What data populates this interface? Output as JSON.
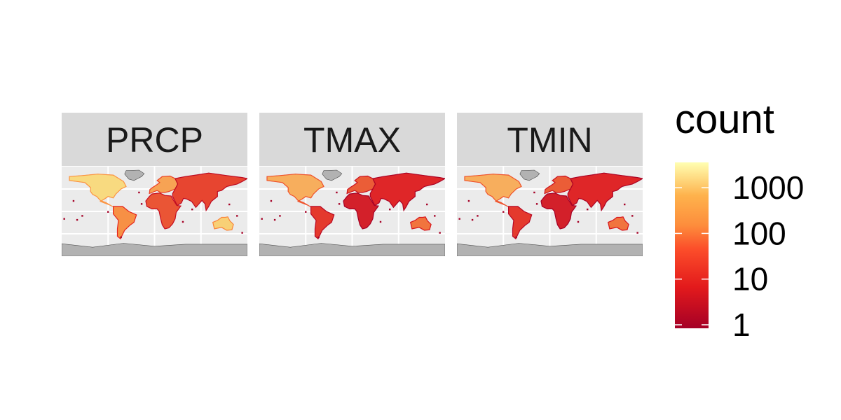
{
  "chart_data": {
    "type": "heatmap",
    "description_kind": "faceted world map of binned station counts",
    "facets": [
      "PRCP",
      "TMAX",
      "TMIN"
    ],
    "xlim": [
      -180,
      180
    ],
    "ylim": [
      -90,
      90
    ],
    "grid": true,
    "legend": {
      "title": "count",
      "scale": "log10",
      "range": [
        1,
        3000
      ],
      "breaks": [
        1,
        10,
        100,
        1000
      ],
      "labels": [
        "1",
        "10",
        "100",
        "1000"
      ],
      "placement": "right"
    },
    "colors": {
      "low": "#a50026",
      "mid_low": "#e31a1c",
      "mid": "#fd8d3c",
      "mid_high": "#fed976",
      "high": "#ffffb2",
      "land": "#b2b2b2",
      "panel_bg": "#ebebeb",
      "strip_bg": "#d9d9d9",
      "grid": "#ffffff"
    },
    "regions": [
      {
        "name": "North America",
        "lonlat": [
          [
            -165,
            70
          ],
          [
            -140,
            72
          ],
          [
            -110,
            75
          ],
          [
            -80,
            73
          ],
          [
            -60,
            60
          ],
          [
            -55,
            50
          ],
          [
            -65,
            45
          ],
          [
            -75,
            35
          ],
          [
            -80,
            27
          ],
          [
            -90,
            30
          ],
          [
            -97,
            25
          ],
          [
            -105,
            20
          ],
          [
            -95,
            16
          ],
          [
            -85,
            12
          ],
          [
            -80,
            9
          ],
          [
            -95,
            18
          ],
          [
            -105,
            22
          ],
          [
            -112,
            30
          ],
          [
            -120,
            34
          ],
          [
            -124,
            40
          ],
          [
            -124,
            48
          ],
          [
            -135,
            58
          ],
          [
            -150,
            60
          ],
          [
            -165,
            62
          ]
        ],
        "intensity": {
          "PRCP": 0.82,
          "TMAX": 0.66,
          "TMIN": 0.66
        }
      },
      {
        "name": "Greenland",
        "lonlat": [
          [
            -55,
            82
          ],
          [
            -30,
            83
          ],
          [
            -20,
            76
          ],
          [
            -25,
            70
          ],
          [
            -40,
            62
          ],
          [
            -50,
            65
          ],
          [
            -58,
            75
          ]
        ],
        "intensity": {
          "PRCP": 0.12,
          "TMAX": 0.12,
          "TMIN": 0.12
        }
      },
      {
        "name": "South America",
        "lonlat": [
          [
            -80,
            10
          ],
          [
            -62,
            10
          ],
          [
            -50,
            0
          ],
          [
            -35,
            -7
          ],
          [
            -40,
            -22
          ],
          [
            -48,
            -28
          ],
          [
            -58,
            -38
          ],
          [
            -66,
            -55
          ],
          [
            -72,
            -50
          ],
          [
            -72,
            -35
          ],
          [
            -70,
            -18
          ],
          [
            -80,
            -5
          ]
        ],
        "intensity": {
          "PRCP": 0.55,
          "TMAX": 0.33,
          "TMIN": 0.33
        }
      },
      {
        "name": "Europe",
        "lonlat": [
          [
            -10,
            36
          ],
          [
            -9,
            44
          ],
          [
            -4,
            48
          ],
          [
            5,
            54
          ],
          [
            10,
            58
          ],
          [
            5,
            62
          ],
          [
            15,
            70
          ],
          [
            30,
            71
          ],
          [
            40,
            66
          ],
          [
            45,
            55
          ],
          [
            40,
            45
          ],
          [
            28,
            40
          ],
          [
            20,
            38
          ],
          [
            12,
            38
          ],
          [
            5,
            42
          ]
        ],
        "intensity": {
          "PRCP": 0.62,
          "TMAX": 0.42,
          "TMIN": 0.42
        }
      },
      {
        "name": "Africa",
        "lonlat": [
          [
            -17,
            21
          ],
          [
            -10,
            30
          ],
          [
            -5,
            35
          ],
          [
            10,
            37
          ],
          [
            20,
            32
          ],
          [
            32,
            31
          ],
          [
            35,
            25
          ],
          [
            43,
            12
          ],
          [
            51,
            11
          ],
          [
            42,
            -2
          ],
          [
            40,
            -15
          ],
          [
            35,
            -25
          ],
          [
            28,
            -33
          ],
          [
            20,
            -35
          ],
          [
            15,
            -27
          ],
          [
            12,
            -15
          ],
          [
            9,
            0
          ],
          [
            5,
            5
          ],
          [
            -5,
            5
          ],
          [
            -15,
            10
          ]
        ],
        "intensity": {
          "PRCP": 0.4,
          "TMAX": 0.22,
          "TMIN": 0.22
        }
      },
      {
        "name": "Asia",
        "lonlat": [
          [
            40,
            45
          ],
          [
            45,
            55
          ],
          [
            40,
            66
          ],
          [
            60,
            70
          ],
          [
            80,
            73
          ],
          [
            105,
            77
          ],
          [
            140,
            72
          ],
          [
            170,
            68
          ],
          [
            180,
            66
          ],
          [
            170,
            60
          ],
          [
            160,
            55
          ],
          [
            140,
            50
          ],
          [
            130,
            42
          ],
          [
            122,
            40
          ],
          [
            122,
            30
          ],
          [
            110,
            20
          ],
          [
            105,
            10
          ],
          [
            100,
            2
          ],
          [
            98,
            15
          ],
          [
            92,
            22
          ],
          [
            80,
            8
          ],
          [
            72,
            20
          ],
          [
            62,
            25
          ],
          [
            56,
            26
          ],
          [
            52,
            17
          ],
          [
            44,
            12
          ],
          [
            35,
            30
          ],
          [
            35,
            36
          ]
        ],
        "intensity": {
          "PRCP": 0.36,
          "TMAX": 0.28,
          "TMIN": 0.28
        }
      },
      {
        "name": "Australia",
        "lonlat": [
          [
            113,
            -22
          ],
          [
            122,
            -18
          ],
          [
            130,
            -12
          ],
          [
            137,
            -12
          ],
          [
            142,
            -11
          ],
          [
            146,
            -19
          ],
          [
            153,
            -26
          ],
          [
            150,
            -37
          ],
          [
            140,
            -38
          ],
          [
            130,
            -32
          ],
          [
            116,
            -35
          ]
        ],
        "intensity": {
          "PRCP": 0.78,
          "TMAX": 0.48,
          "TMIN": 0.48
        }
      },
      {
        "name": "Antarctica",
        "lonlat": [
          [
            -180,
            -65
          ],
          [
            -120,
            -72
          ],
          [
            -60,
            -64
          ],
          [
            0,
            -70
          ],
          [
            60,
            -66
          ],
          [
            120,
            -66
          ],
          [
            180,
            -66
          ],
          [
            180,
            -90
          ],
          [
            -180,
            -90
          ]
        ],
        "intensity": {
          "PRCP": 0.05,
          "TMAX": 0.05,
          "TMIN": 0.05
        }
      }
    ]
  }
}
